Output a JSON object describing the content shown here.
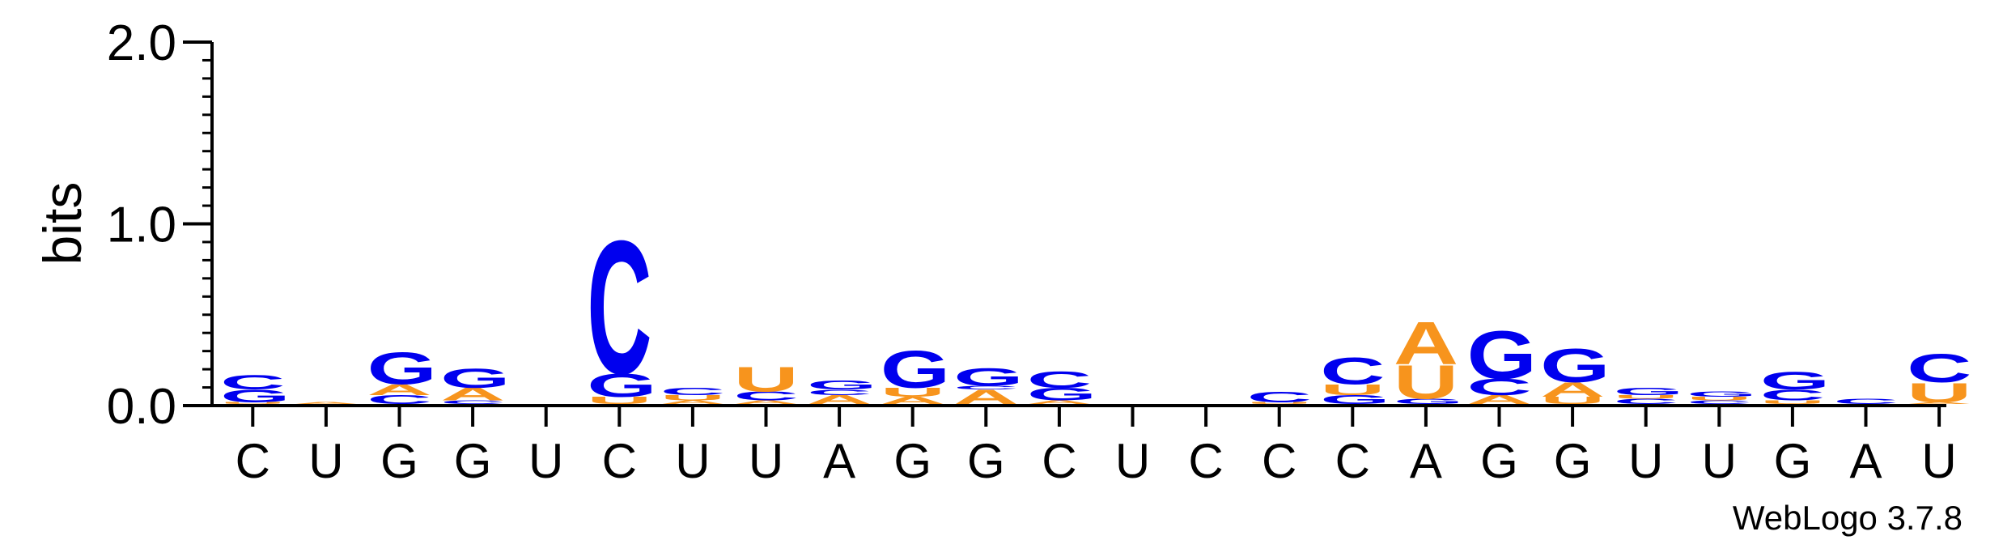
{
  "chart_data": {
    "type": "sequence-logo",
    "ylabel": "bits",
    "ylim": [
      0,
      2.0
    ],
    "yticks": [
      "0.0",
      "1.0",
      "2.0"
    ],
    "credit": "WebLogo 3.7.8",
    "colors": {
      "A": "#f7941d",
      "U": "#f7941d",
      "C": "#0000ee",
      "G": "#0000ee"
    },
    "positions": [
      {
        "label": "C",
        "stack": [
          {
            "letter": "U",
            "bits": 0.01
          },
          {
            "letter": "G",
            "bits": 0.07
          },
          {
            "letter": "C",
            "bits": 0.08
          }
        ]
      },
      {
        "label": "U",
        "stack": [
          {
            "letter": "A",
            "bits": 0.01
          }
        ]
      },
      {
        "label": "G",
        "stack": [
          {
            "letter": "C",
            "bits": 0.05
          },
          {
            "letter": "A",
            "bits": 0.06
          },
          {
            "letter": "G",
            "bits": 0.18
          }
        ]
      },
      {
        "label": "G",
        "stack": [
          {
            "letter": "C",
            "bits": 0.02
          },
          {
            "letter": "A",
            "bits": 0.07
          },
          {
            "letter": "G",
            "bits": 0.11
          }
        ]
      },
      {
        "label": "U",
        "stack": []
      },
      {
        "label": "C",
        "stack": [
          {
            "letter": "U",
            "bits": 0.04
          },
          {
            "letter": "G",
            "bits": 0.13
          },
          {
            "letter": "C",
            "bits": 0.75
          }
        ]
      },
      {
        "label": "U",
        "stack": [
          {
            "letter": "A",
            "bits": 0.02
          },
          {
            "letter": "U",
            "bits": 0.03
          },
          {
            "letter": "C",
            "bits": 0.04
          }
        ]
      },
      {
        "label": "U",
        "stack": [
          {
            "letter": "A",
            "bits": 0.02
          },
          {
            "letter": "C",
            "bits": 0.05
          },
          {
            "letter": "U",
            "bits": 0.14
          }
        ]
      },
      {
        "label": "A",
        "stack": [
          {
            "letter": "A",
            "bits": 0.05
          },
          {
            "letter": "C",
            "bits": 0.03
          },
          {
            "letter": "G",
            "bits": 0.05
          }
        ]
      },
      {
        "label": "G",
        "stack": [
          {
            "letter": "A",
            "bits": 0.04
          },
          {
            "letter": "U",
            "bits": 0.05
          },
          {
            "letter": "G",
            "bits": 0.21
          }
        ]
      },
      {
        "label": "G",
        "stack": [
          {
            "letter": "A",
            "bits": 0.08
          },
          {
            "letter": "C",
            "bits": 0.02
          },
          {
            "letter": "G",
            "bits": 0.1
          }
        ]
      },
      {
        "label": "C",
        "stack": [
          {
            "letter": "A",
            "bits": 0.02
          },
          {
            "letter": "G",
            "bits": 0.07
          },
          {
            "letter": "C",
            "bits": 0.09
          }
        ]
      },
      {
        "label": "U",
        "stack": []
      },
      {
        "label": "C",
        "stack": []
      },
      {
        "label": "C",
        "stack": [
          {
            "letter": "U",
            "bits": 0.01
          },
          {
            "letter": "C",
            "bits": 0.06
          }
        ]
      },
      {
        "label": "C",
        "stack": [
          {
            "letter": "G",
            "bits": 0.05
          },
          {
            "letter": "U",
            "bits": 0.06
          },
          {
            "letter": "C",
            "bits": 0.15
          }
        ]
      },
      {
        "label": "A",
        "stack": [
          {
            "letter": "G",
            "bits": 0.03
          },
          {
            "letter": "U",
            "bits": 0.19
          },
          {
            "letter": "A",
            "bits": 0.24
          }
        ]
      },
      {
        "label": "G",
        "stack": [
          {
            "letter": "A",
            "bits": 0.05
          },
          {
            "letter": "C",
            "bits": 0.09
          },
          {
            "letter": "G",
            "bits": 0.27
          }
        ]
      },
      {
        "label": "G",
        "stack": [
          {
            "letter": "U",
            "bits": 0.04
          },
          {
            "letter": "A",
            "bits": 0.08
          },
          {
            "letter": "G",
            "bits": 0.19
          }
        ]
      },
      {
        "label": "U",
        "stack": [
          {
            "letter": "C",
            "bits": 0.03
          },
          {
            "letter": "U",
            "bits": 0.02
          },
          {
            "letter": "G",
            "bits": 0.04
          }
        ]
      },
      {
        "label": "U",
        "stack": [
          {
            "letter": "C",
            "bits": 0.02
          },
          {
            "letter": "U",
            "bits": 0.02
          },
          {
            "letter": "G",
            "bits": 0.03
          }
        ]
      },
      {
        "label": "G",
        "stack": [
          {
            "letter": "U",
            "bits": 0.02
          },
          {
            "letter": "C",
            "bits": 0.06
          },
          {
            "letter": "G",
            "bits": 0.1
          }
        ]
      },
      {
        "label": "A",
        "stack": [
          {
            "letter": "C",
            "bits": 0.03
          }
        ]
      },
      {
        "label": "U",
        "stack": [
          {
            "letter": "A",
            "bits": 0.01
          },
          {
            "letter": "U",
            "bits": 0.11
          },
          {
            "letter": "C",
            "bits": 0.16
          }
        ]
      }
    ]
  }
}
